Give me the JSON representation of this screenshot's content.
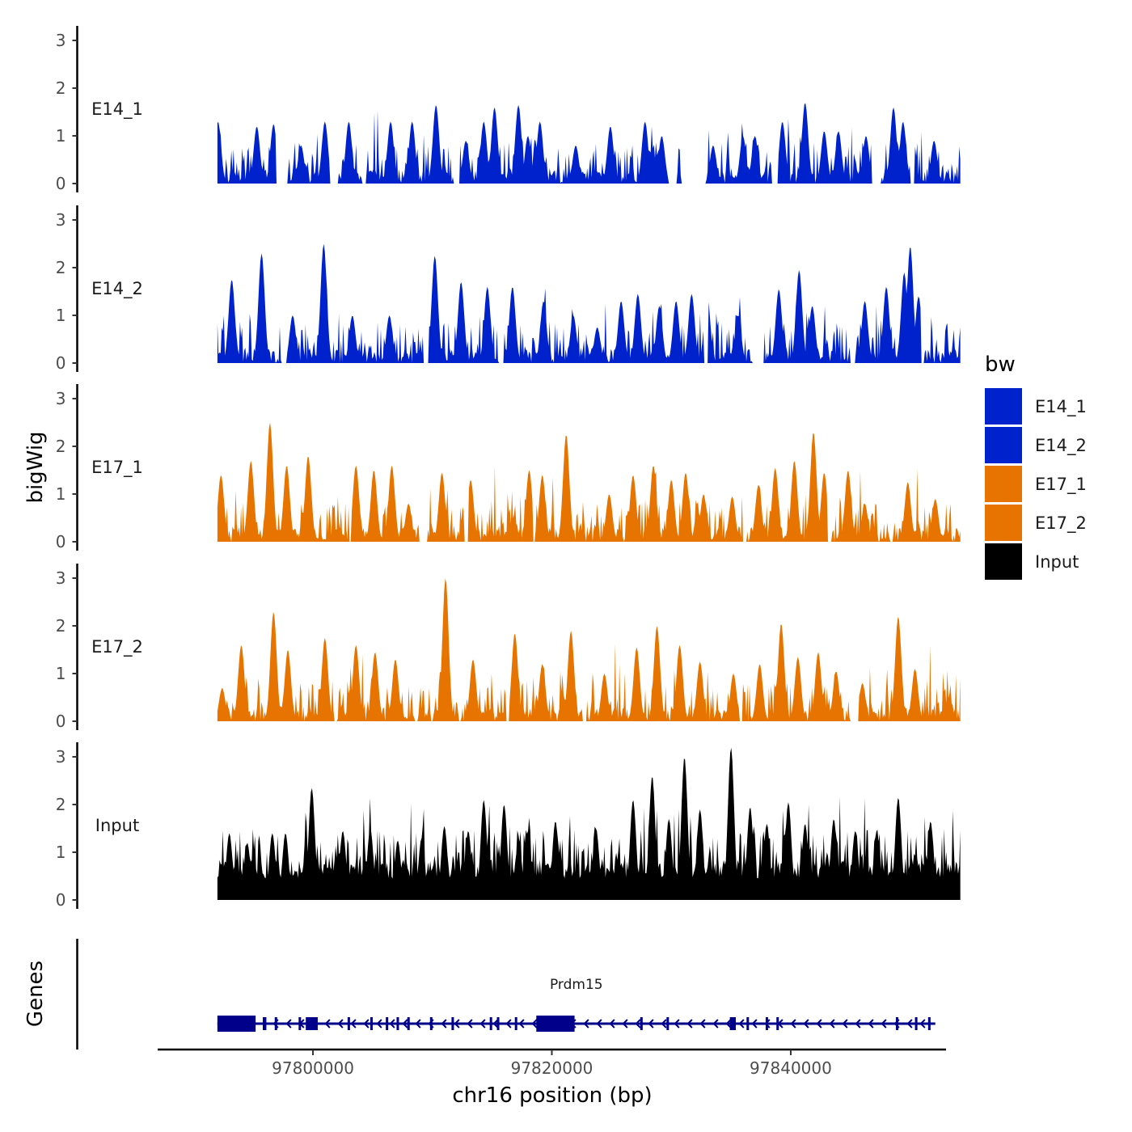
{
  "chart_data": {
    "type": "area",
    "title": "",
    "ylabel": "bigWig",
    "gene_track_label": "Genes",
    "xlabel": "chr16 position (bp)",
    "xlim": [
      97787000,
      97853000
    ],
    "x_ticks": [
      97800000,
      97820000,
      97840000
    ],
    "ylim": [
      0,
      3.2
    ],
    "y_ticks": [
      0,
      1,
      2,
      3
    ],
    "region": [
      97792000,
      97854200
    ],
    "legend": {
      "title": "bw",
      "position": "right",
      "entries": [
        {
          "label": "E14_1",
          "color": "#0022CC"
        },
        {
          "label": "E14_2",
          "color": "#0022CC"
        },
        {
          "label": "E17_1",
          "color": "#E87400"
        },
        {
          "label": "E17_2",
          "color": "#E87400"
        },
        {
          "label": "Input",
          "color": "#000000"
        }
      ]
    },
    "series": [
      {
        "name": "E14_1",
        "color": "#0022CC",
        "peaks": [
          [
            97792050,
            1.3
          ],
          [
            97795300,
            1.2
          ],
          [
            97796700,
            1.25
          ],
          [
            97799000,
            0.8
          ],
          [
            97801000,
            1.3
          ],
          [
            97803000,
            1.3
          ],
          [
            97806500,
            1.3
          ],
          [
            97808300,
            1.3
          ],
          [
            97810300,
            1.65
          ],
          [
            97812800,
            0.9
          ],
          [
            97814300,
            1.3
          ],
          [
            97815200,
            1.6
          ],
          [
            97817200,
            1.65
          ],
          [
            97818000,
            1.0
          ],
          [
            97819000,
            1.3
          ],
          [
            97822000,
            0.8
          ],
          [
            97824900,
            1.2
          ],
          [
            97827800,
            1.3
          ],
          [
            97829200,
            1.0
          ],
          [
            97833500,
            0.8
          ],
          [
            97836000,
            1.0
          ],
          [
            97837000,
            1.0
          ],
          [
            97839300,
            1.3
          ],
          [
            97841200,
            1.7
          ],
          [
            97842800,
            1.1
          ],
          [
            97844000,
            1.1
          ],
          [
            97846300,
            1.0
          ],
          [
            97848600,
            1.6
          ],
          [
            97849400,
            1.3
          ],
          [
            97852000,
            0.9
          ]
        ],
        "gaps": [
          [
            97796900,
            97797900
          ],
          [
            97801400,
            97802100
          ],
          [
            97804100,
            97804500
          ],
          [
            97811800,
            97812300
          ],
          [
            97829800,
            97830500
          ],
          [
            97830800,
            97832900
          ],
          [
            97838400,
            97838900
          ],
          [
            97846800,
            97847600
          ],
          [
            97850000,
            97850400
          ]
        ],
        "noise_seed": 11,
        "noise_level": 0.55
      },
      {
        "name": "E14_2",
        "color": "#0022CC",
        "peaks": [
          [
            97793200,
            1.75
          ],
          [
            97795700,
            2.3
          ],
          [
            97798300,
            1.0
          ],
          [
            97800900,
            2.5
          ],
          [
            97803300,
            1.0
          ],
          [
            97806400,
            1.0
          ],
          [
            97810200,
            2.25
          ],
          [
            97812400,
            1.7
          ],
          [
            97814600,
            1.6
          ],
          [
            97816700,
            1.6
          ],
          [
            97819300,
            1.3
          ],
          [
            97821800,
            1.0
          ],
          [
            97823800,
            0.75
          ],
          [
            97825800,
            1.3
          ],
          [
            97827200,
            1.45
          ],
          [
            97829000,
            1.2
          ],
          [
            97830400,
            1.3
          ],
          [
            97831700,
            1.45
          ],
          [
            97833000,
            1.45
          ],
          [
            97835600,
            1.0
          ],
          [
            97839000,
            1.55
          ],
          [
            97840700,
            1.95
          ],
          [
            97841800,
            1.2
          ],
          [
            97846200,
            1.3
          ],
          [
            97848000,
            1.6
          ],
          [
            97849500,
            1.9
          ],
          [
            97850000,
            2.45
          ],
          [
            97850700,
            1.4
          ]
        ],
        "gaps": [
          [
            97797400,
            97797800
          ],
          [
            97809200,
            97809700
          ],
          [
            97815500,
            97816000
          ],
          [
            97832700,
            97833100
          ],
          [
            97836800,
            97837800
          ],
          [
            97845000,
            97845400
          ],
          [
            97850900,
            97851200
          ]
        ],
        "noise_seed": 23,
        "noise_level": 0.55
      },
      {
        "name": "E17_1",
        "color": "#E87400",
        "peaks": [
          [
            97792300,
            1.4
          ],
          [
            97794800,
            1.7
          ],
          [
            97796400,
            2.5
          ],
          [
            97797800,
            1.6
          ],
          [
            97799600,
            1.8
          ],
          [
            97803600,
            1.6
          ],
          [
            97805100,
            1.5
          ],
          [
            97806600,
            1.6
          ],
          [
            97808000,
            0.8
          ],
          [
            97810800,
            1.45
          ],
          [
            97813200,
            1.3
          ],
          [
            97818100,
            1.5
          ],
          [
            97819200,
            1.4
          ],
          [
            97821200,
            2.25
          ],
          [
            97824800,
            1.0
          ],
          [
            97826800,
            1.4
          ],
          [
            97828500,
            1.6
          ],
          [
            97830000,
            1.3
          ],
          [
            97831200,
            1.45
          ],
          [
            97832700,
            1.0
          ],
          [
            97835100,
            0.95
          ],
          [
            97837300,
            1.2
          ],
          [
            97838700,
            1.55
          ],
          [
            97840300,
            1.7
          ],
          [
            97841900,
            2.3
          ],
          [
            97842800,
            1.45
          ],
          [
            97844800,
            1.5
          ],
          [
            97846200,
            0.8
          ],
          [
            97849800,
            1.25
          ],
          [
            97852100,
            0.9
          ]
        ],
        "gaps": [
          [
            97803000,
            97803200
          ],
          [
            97808900,
            97809600
          ],
          [
            97812700,
            97813000
          ],
          [
            97818400,
            97818600
          ],
          [
            97836000,
            97836300
          ],
          [
            97843100,
            97843400
          ],
          [
            97848300,
            97848600
          ]
        ],
        "noise_seed": 37,
        "noise_level": 0.5
      },
      {
        "name": "E17_2",
        "color": "#E87400",
        "peaks": [
          [
            97792400,
            0.7
          ],
          [
            97794000,
            1.6
          ],
          [
            97796700,
            2.3
          ],
          [
            97797900,
            1.5
          ],
          [
            97801000,
            1.75
          ],
          [
            97803600,
            1.6
          ],
          [
            97805200,
            1.45
          ],
          [
            97806900,
            1.3
          ],
          [
            97811100,
            3.0
          ],
          [
            97813400,
            1.3
          ],
          [
            97816900,
            1.85
          ],
          [
            97819200,
            1.2
          ],
          [
            97821600,
            1.9
          ],
          [
            97824400,
            1.0
          ],
          [
            97827100,
            1.55
          ],
          [
            97828800,
            2.0
          ],
          [
            97830700,
            1.6
          ],
          [
            97832400,
            1.25
          ],
          [
            97835200,
            1.0
          ],
          [
            97837400,
            1.2
          ],
          [
            97839200,
            2.05
          ],
          [
            97840600,
            1.35
          ],
          [
            97842300,
            1.45
          ],
          [
            97843800,
            1.05
          ],
          [
            97846000,
            0.8
          ],
          [
            97849000,
            2.2
          ],
          [
            97850400,
            1.1
          ]
        ],
        "gaps": [
          [
            97801800,
            97802000
          ],
          [
            97808500,
            97808800
          ],
          [
            97812200,
            97812400
          ],
          [
            97816200,
            97816400
          ],
          [
            97822600,
            97822900
          ],
          [
            97835700,
            97836000
          ],
          [
            97845000,
            97845700
          ]
        ],
        "noise_seed": 53,
        "noise_level": 0.5
      },
      {
        "name": "Input",
        "color": "#000000",
        "peaks": [
          [
            97793000,
            1.4
          ],
          [
            97794500,
            1.2
          ],
          [
            97796600,
            1.4
          ],
          [
            97797700,
            1.4
          ],
          [
            97799900,
            2.35
          ],
          [
            97802500,
            1.45
          ],
          [
            97804800,
            1.5
          ],
          [
            97807100,
            1.25
          ],
          [
            97809100,
            1.3
          ],
          [
            97811000,
            1.55
          ],
          [
            97813000,
            1.45
          ],
          [
            97814300,
            2.1
          ],
          [
            97816000,
            2.0
          ],
          [
            97818000,
            1.45
          ],
          [
            97820300,
            1.65
          ],
          [
            97823700,
            1.5
          ],
          [
            97826800,
            2.1
          ],
          [
            97828400,
            2.6
          ],
          [
            97829800,
            1.7
          ],
          [
            97831100,
            3.0
          ],
          [
            97832400,
            1.9
          ],
          [
            97835000,
            3.2
          ],
          [
            97836600,
            1.95
          ],
          [
            97838000,
            1.6
          ],
          [
            97839800,
            2.05
          ],
          [
            97841200,
            1.6
          ],
          [
            97843600,
            1.7
          ],
          [
            97845400,
            1.45
          ],
          [
            97847200,
            1.45
          ],
          [
            97849000,
            2.15
          ],
          [
            97851700,
            1.65
          ],
          [
            97853600,
            0.5
          ]
        ],
        "gaps": [],
        "noise_seed": 71,
        "noise_level": 0.65,
        "baseline": 0.45
      }
    ],
    "genes": [
      {
        "name": "Prdm15",
        "strand": "-",
        "color": "#00008B",
        "start": 97792000,
        "end": 97852100,
        "exons": [
          [
            97792000,
            97795200
          ],
          [
            97795800,
            97796100
          ],
          [
            97796800,
            97797000
          ],
          [
            97798800,
            97799000
          ],
          [
            97799400,
            97800400
          ],
          [
            97802900,
            97803100
          ],
          [
            97804800,
            97805000
          ],
          [
            97806100,
            97806300
          ],
          [
            97807000,
            97807200
          ],
          [
            97807900,
            97808100
          ],
          [
            97809800,
            97810000
          ],
          [
            97811600,
            97811800
          ],
          [
            97814800,
            97815000
          ],
          [
            97815400,
            97815600
          ],
          [
            97816900,
            97817100
          ],
          [
            97818700,
            97821900
          ],
          [
            97827400,
            97827600
          ],
          [
            97829600,
            97829800
          ],
          [
            97834900,
            97835400
          ],
          [
            97836300,
            97836500
          ],
          [
            97837900,
            97838100
          ],
          [
            97838800,
            97839000
          ],
          [
            97848800,
            97849000
          ],
          [
            97850400,
            97850600
          ],
          [
            97851500,
            97851700
          ]
        ],
        "thick_exons": [
          [
            97792000,
            97795200
          ],
          [
            97818700,
            97821900
          ]
        ]
      }
    ]
  }
}
